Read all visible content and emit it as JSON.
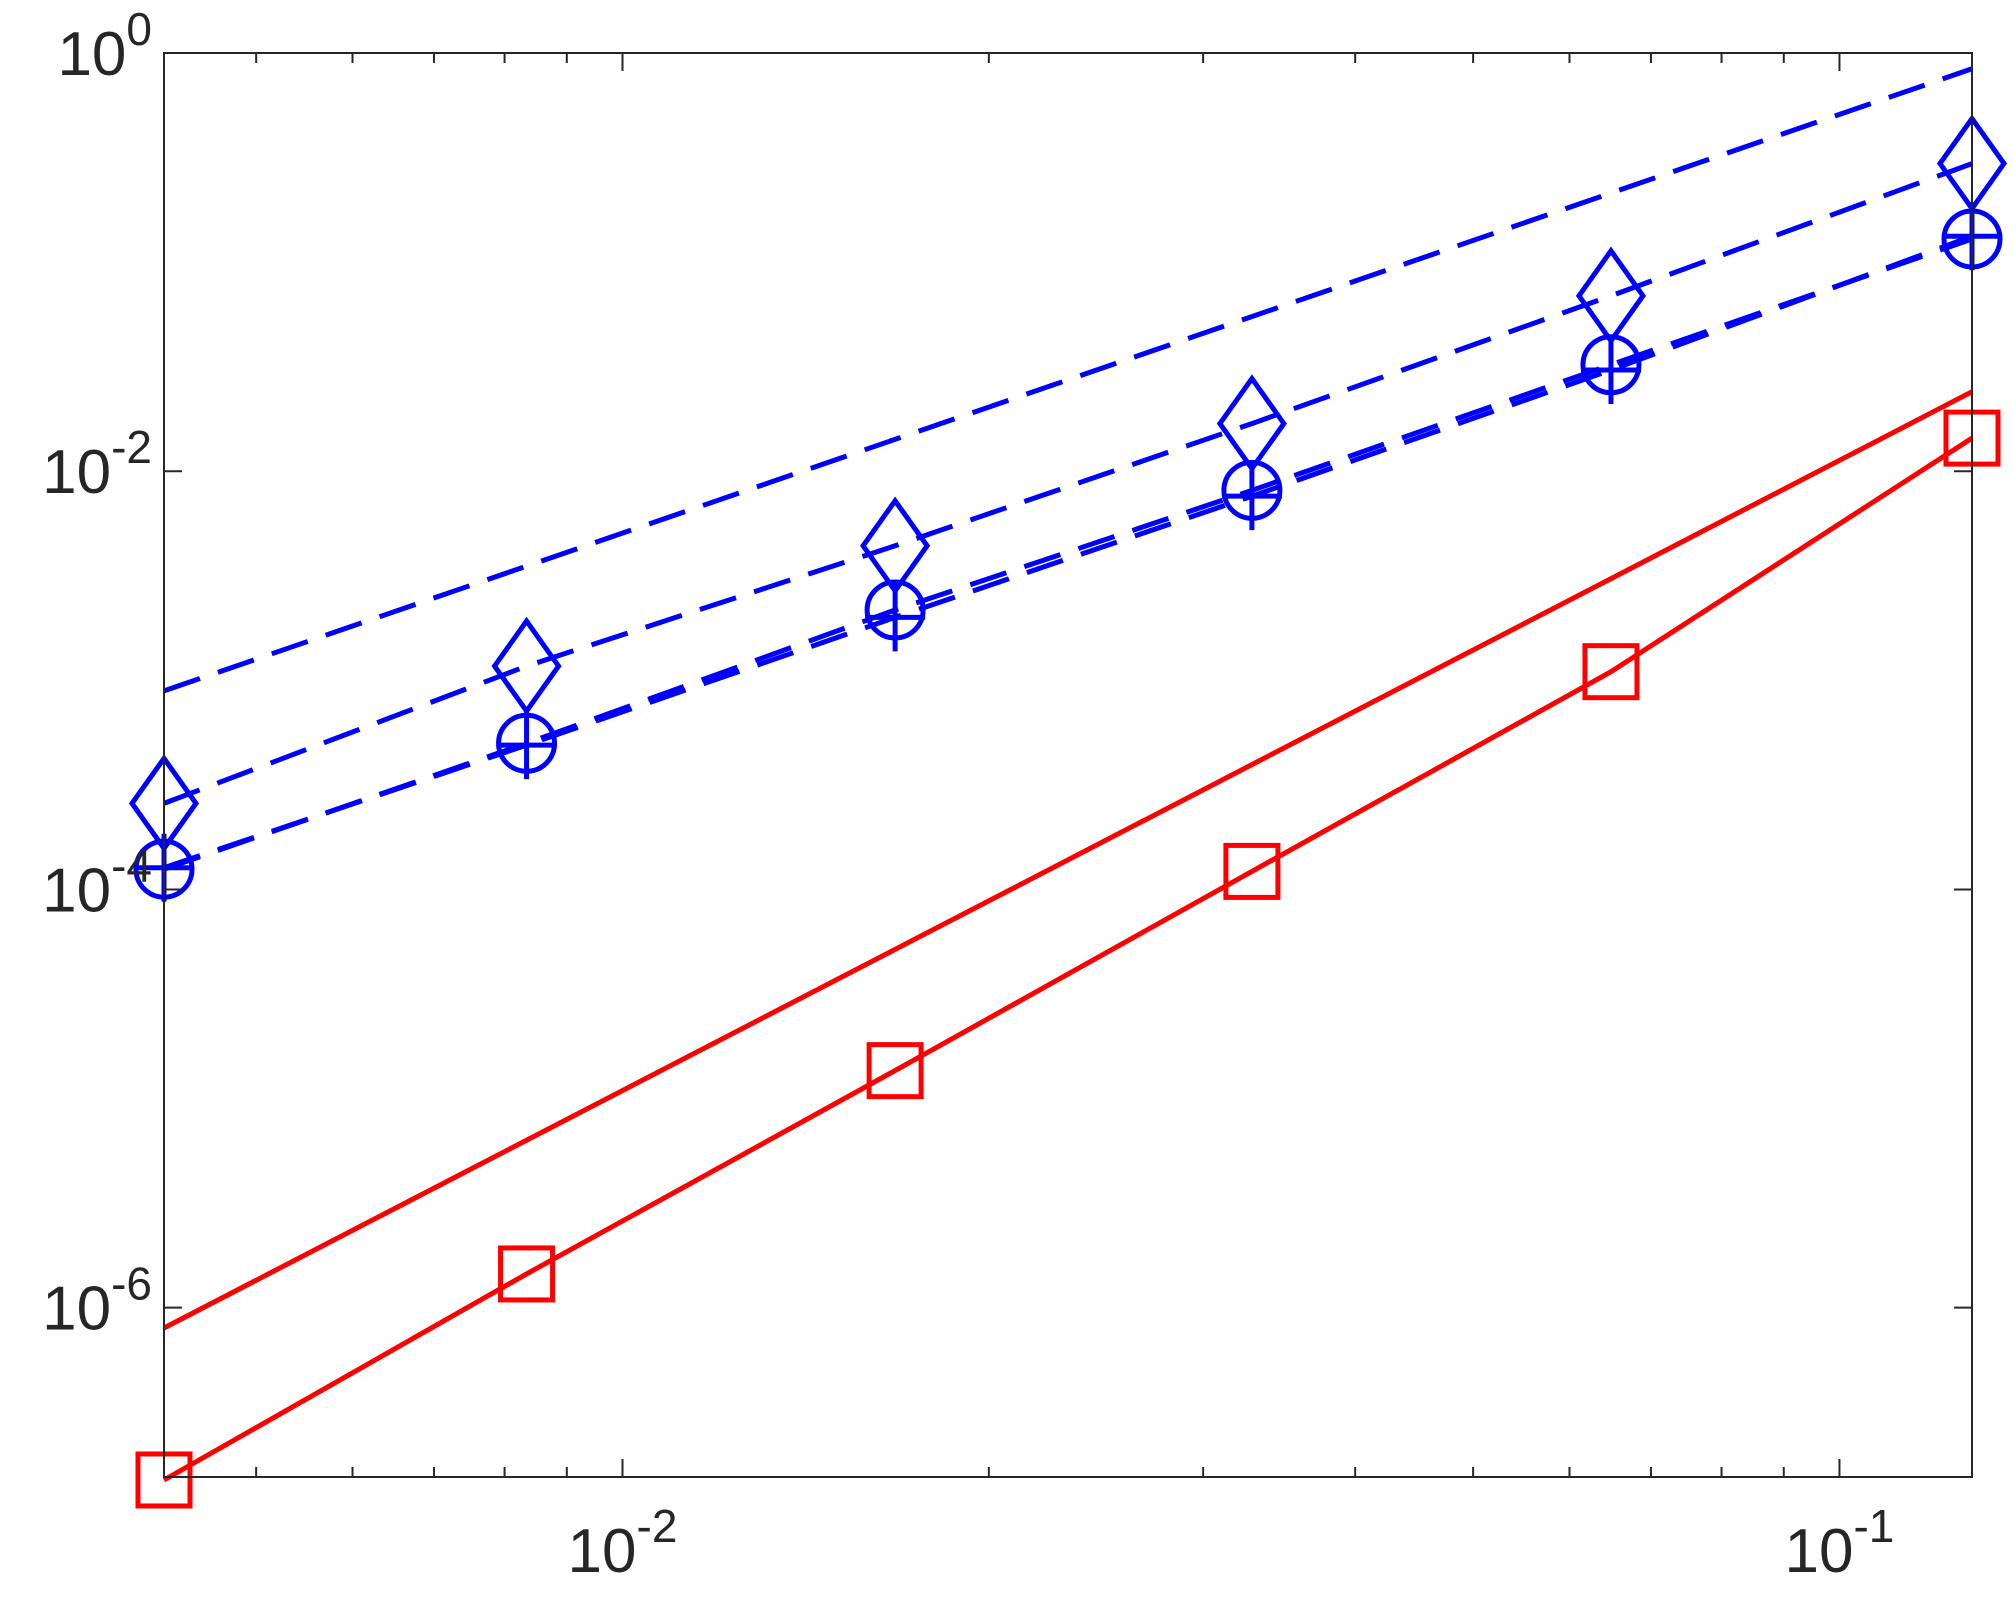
{
  "chart_data": {
    "type": "line",
    "xscale": "log",
    "yscale": "log",
    "xlim": [
      0.0042,
      0.1285
    ],
    "ylim": [
      1.55e-07,
      1
    ],
    "xticks": [
      {
        "value": 0.01,
        "label": "10",
        "exponent": "-2"
      },
      {
        "value": 0.1,
        "label": "10",
        "exponent": "-1"
      }
    ],
    "xminorticks": [
      0.005,
      0.006,
      0.007,
      0.008,
      0.009,
      0.02,
      0.03,
      0.04,
      0.05,
      0.06,
      0.07,
      0.08,
      0.09
    ],
    "yticks": [
      {
        "value": 1e-06,
        "label": "10",
        "exponent": "-6"
      },
      {
        "value": 0.0001,
        "label": "10",
        "exponent": "-4"
      },
      {
        "value": 0.01,
        "label": "10",
        "exponent": "-2"
      },
      {
        "value": 1,
        "label": "10",
        "exponent": "0"
      }
    ],
    "grid": false,
    "series": [
      {
        "color": "#ff0000",
        "marker": "none",
        "linestyle": "solid",
        "x": [
          0.0042,
          0.1285
        ],
        "values": [
          8e-07,
          0.024
        ]
      },
      {
        "color": "#ff0000",
        "marker": "square",
        "linestyle": "solid",
        "x": [
          0.0042,
          0.00834,
          0.01675,
          0.0329,
          0.0649,
          0.1285
        ],
        "values": [
          1.5e-07,
          1.45e-06,
          1.36e-05,
          0.000122,
          0.0011,
          0.0144
        ]
      },
      {
        "color": "#0000ff",
        "marker": "none",
        "linestyle": "dashed",
        "x": [
          0.0042,
          0.1285
        ],
        "values": [
          0.00089,
          0.84
        ]
      },
      {
        "color": "#0000ff",
        "marker": "diamond",
        "linestyle": "dashed",
        "x": [
          0.0042,
          0.00834,
          0.01675,
          0.0329,
          0.0649,
          0.1285
        ],
        "values": [
          0.000258,
          0.00117,
          0.0044,
          0.0169,
          0.069,
          0.296
        ]
      },
      {
        "color": "#0000ff",
        "marker": "circle",
        "linestyle": "dashed",
        "x": [
          0.0042,
          0.00834,
          0.01675,
          0.0329,
          0.0649,
          0.1285
        ],
        "values": [
          0.000125,
          0.0005,
          0.00217,
          0.0081,
          0.0323,
          0.129
        ]
      },
      {
        "color": "#0000ff",
        "marker": "plus",
        "linestyle": "dashed",
        "x": [
          0.0042,
          0.00834,
          0.01675,
          0.0329,
          0.0649,
          0.1285
        ],
        "values": [
          0.000127,
          0.00049,
          0.002,
          0.0076,
          0.0305,
          0.133
        ]
      }
    ]
  }
}
